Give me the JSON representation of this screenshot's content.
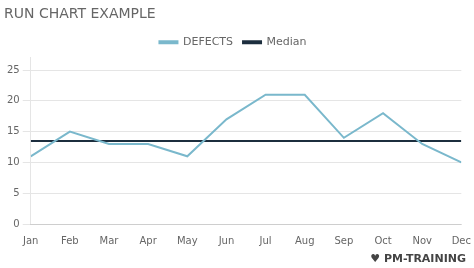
{
  "chart_data": {
    "type": "line",
    "title": "RUN CHART EXAMPLE",
    "categories": [
      "Jan",
      "Feb",
      "Mar",
      "Apr",
      "May",
      "Jun",
      "Jul",
      "Aug",
      "Sep",
      "Oct",
      "Nov",
      "Dec"
    ],
    "series": [
      {
        "name": "DEFECTS",
        "color": "#7ab8cc",
        "values": [
          11,
          15,
          13,
          13,
          11,
          17,
          21,
          21,
          14,
          18,
          13,
          10
        ]
      },
      {
        "name": "Median",
        "color": "#1c2e3e",
        "values": [
          13.5,
          13.5,
          13.5,
          13.5,
          13.5,
          13.5,
          13.5,
          13.5,
          13.5,
          13.5,
          13.5,
          13.5
        ]
      }
    ],
    "ylim": [
      0,
      27
    ],
    "yticks": [
      0,
      5,
      10,
      15,
      20,
      25
    ],
    "grid": true,
    "legend": "top",
    "annotations": [
      "♥",
      "PM-TRAINING"
    ]
  }
}
